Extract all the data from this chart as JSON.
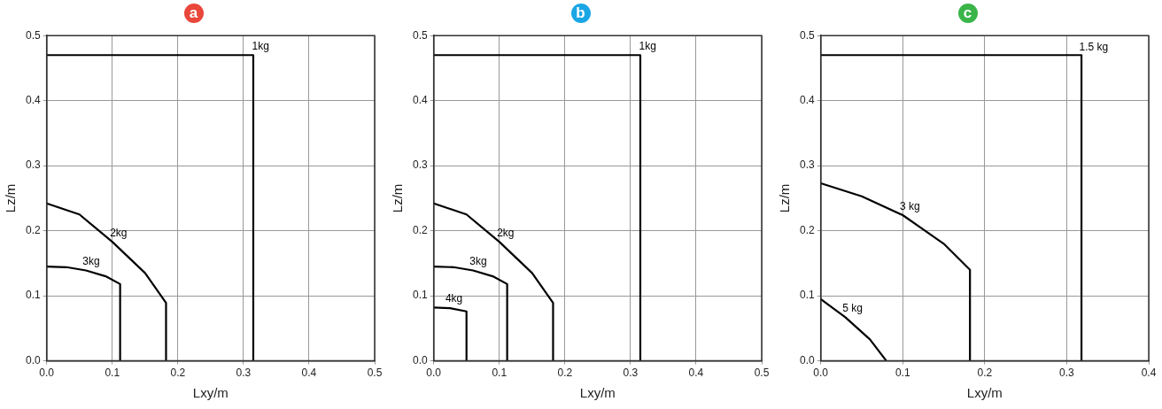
{
  "chart_data": [
    {
      "type": "line",
      "title": "a",
      "xlabel": "Lxy/m",
      "ylabel": "Lz/m",
      "xlim": [
        0,
        0.5
      ],
      "ylim": [
        0,
        0.5
      ],
      "xticks": [
        {
          "value": 0,
          "label": "0.0"
        },
        {
          "value": 0.1,
          "label": "0.1"
        },
        {
          "value": 0.2,
          "label": "0.2"
        },
        {
          "value": 0.3,
          "label": "0.3"
        },
        {
          "value": 0.4,
          "label": "0.4"
        },
        {
          "value": 0.5,
          "label": "0.5"
        }
      ],
      "yticks": [
        {
          "value": 0,
          "label": "0.0"
        },
        {
          "value": 0.1,
          "label": "0.1"
        },
        {
          "value": 0.2,
          "label": "0.2"
        },
        {
          "value": 0.3,
          "label": "0.3"
        },
        {
          "value": 0.4,
          "label": "0.4"
        },
        {
          "value": 0.5,
          "label": "0.5"
        }
      ],
      "grid": true,
      "marker": "none",
      "line_style": "solid",
      "series": [
        {
          "name": "1kg",
          "color": "#000000",
          "x": [
            0,
            0.315,
            0.315
          ],
          "values": [
            0.47,
            0.47,
            0
          ]
        },
        {
          "name": "2kg",
          "color": "#000000",
          "x": [
            0,
            0.05,
            0.1,
            0.15,
            0.182,
            0.182
          ],
          "values": [
            0.242,
            0.225,
            0.183,
            0.135,
            0.089,
            0
          ]
        },
        {
          "name": "3kg",
          "color": "#000000",
          "x": [
            0,
            0.03,
            0.06,
            0.09,
            0.112,
            0.112
          ],
          "values": [
            0.145,
            0.144,
            0.139,
            0.13,
            0.118,
            0
          ]
        }
      ]
    },
    {
      "type": "line",
      "title": "b",
      "xlabel": "Lxy/m",
      "ylabel": "Lz/m",
      "xlim": [
        0,
        0.5
      ],
      "ylim": [
        0,
        0.5
      ],
      "xticks": [
        {
          "value": 0,
          "label": "0.0"
        },
        {
          "value": 0.1,
          "label": "0.1"
        },
        {
          "value": 0.2,
          "label": "0.2"
        },
        {
          "value": 0.3,
          "label": "0.3"
        },
        {
          "value": 0.4,
          "label": "0.4"
        },
        {
          "value": 0.5,
          "label": "0.5"
        }
      ],
      "yticks": [
        {
          "value": 0,
          "label": "0.0"
        },
        {
          "value": 0.1,
          "label": "0.1"
        },
        {
          "value": 0.2,
          "label": "0.2"
        },
        {
          "value": 0.3,
          "label": "0.3"
        },
        {
          "value": 0.4,
          "label": "0.4"
        },
        {
          "value": 0.5,
          "label": "0.5"
        }
      ],
      "grid": true,
      "marker": "none",
      "line_style": "solid",
      "series": [
        {
          "name": "1kg",
          "color": "#000000",
          "x": [
            0,
            0.315,
            0.315
          ],
          "values": [
            0.47,
            0.47,
            0
          ]
        },
        {
          "name": "2kg",
          "color": "#000000",
          "x": [
            0,
            0.05,
            0.1,
            0.15,
            0.182,
            0.182
          ],
          "values": [
            0.242,
            0.225,
            0.183,
            0.135,
            0.089,
            0
          ]
        },
        {
          "name": "3kg",
          "color": "#000000",
          "x": [
            0,
            0.03,
            0.06,
            0.09,
            0.112,
            0.112
          ],
          "values": [
            0.145,
            0.144,
            0.139,
            0.13,
            0.118,
            0
          ]
        },
        {
          "name": "4kg",
          "color": "#000000",
          "x": [
            0,
            0.025,
            0.05,
            0.05
          ],
          "values": [
            0.082,
            0.081,
            0.076,
            0
          ]
        }
      ]
    },
    {
      "type": "line",
      "title": "c",
      "xlabel": "Lxy/m",
      "ylabel": "Lz/m",
      "xlim": [
        0,
        0.4
      ],
      "ylim": [
        0,
        0.5
      ],
      "xticks": [
        {
          "value": 0,
          "label": "0.0"
        },
        {
          "value": 0.1,
          "label": "0.1"
        },
        {
          "value": 0.2,
          "label": "0.2"
        },
        {
          "value": 0.3,
          "label": "0.3"
        },
        {
          "value": 0.4,
          "label": "0.4"
        }
      ],
      "yticks": [
        {
          "value": 0,
          "label": "0.0"
        },
        {
          "value": 0.1,
          "label": "0.1"
        },
        {
          "value": 0.2,
          "label": "0.2"
        },
        {
          "value": 0.3,
          "label": "0.3"
        },
        {
          "value": 0.4,
          "label": "0.4"
        },
        {
          "value": 0.5,
          "label": "0.5"
        }
      ],
      "grid": true,
      "marker": "none",
      "line_style": "solid",
      "series": [
        {
          "name": "1.5 kg",
          "color": "#000000",
          "x": [
            0,
            0.318,
            0.318
          ],
          "values": [
            0.47,
            0.47,
            0
          ]
        },
        {
          "name": "3 kg",
          "color": "#000000",
          "x": [
            0,
            0.05,
            0.1,
            0.15,
            0.182,
            0.182
          ],
          "values": [
            0.273,
            0.253,
            0.224,
            0.18,
            0.14,
            0
          ]
        },
        {
          "name": "5 kg",
          "color": "#000000",
          "x": [
            0,
            0.03,
            0.06,
            0.08
          ],
          "values": [
            0.095,
            0.067,
            0.033,
            0
          ]
        }
      ]
    }
  ]
}
